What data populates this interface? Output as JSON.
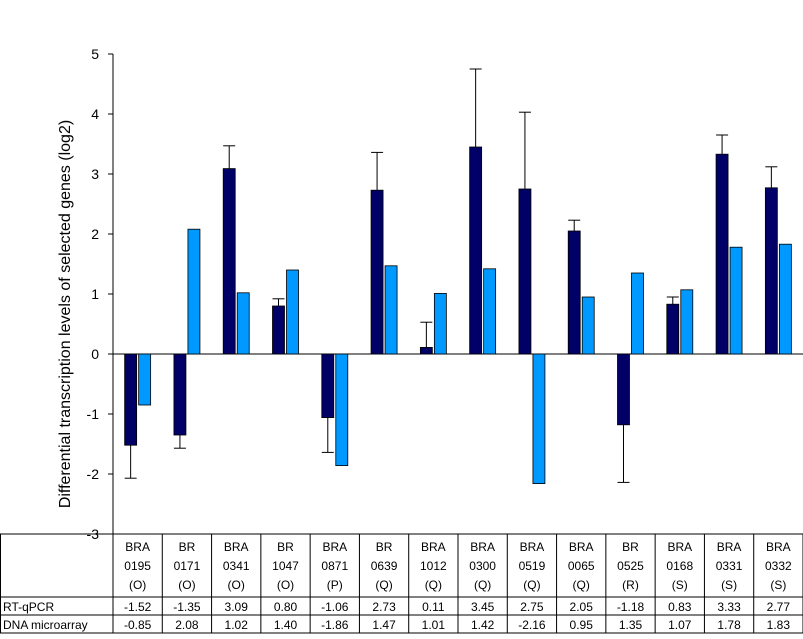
{
  "chart_data": {
    "type": "bar",
    "ylabel": "Differential transcription levels of selected genes (log2)",
    "ylim": [
      -3,
      5
    ],
    "yticks": [
      "-3",
      "-2",
      "-1",
      "0",
      "1",
      "2",
      "3",
      "4",
      "5"
    ],
    "grid": false,
    "categories": [
      [
        "BRA",
        "0195",
        "(O)"
      ],
      [
        "BR",
        "0171",
        "(O)"
      ],
      [
        "BRA",
        "0341",
        "(O)"
      ],
      [
        "BR",
        "1047",
        "(O)"
      ],
      [
        "BRA",
        "0871",
        "(P)"
      ],
      [
        "BR",
        "0639",
        "(Q)"
      ],
      [
        "BRA",
        "1012",
        "(Q)"
      ],
      [
        "BRA",
        "0300",
        "(Q)"
      ],
      [
        "BRA",
        "0519",
        "(Q)"
      ],
      [
        "BRA",
        "0065",
        "(Q)"
      ],
      [
        "BR",
        "0525",
        "(R)"
      ],
      [
        "BRA",
        "0168",
        "(S)"
      ],
      [
        "BRA",
        "0331",
        "(S)"
      ],
      [
        "BRA",
        "0332",
        "(S)"
      ]
    ],
    "series": [
      {
        "name": "RT-qPCR",
        "color": "#000066",
        "values": [
          -1.52,
          -1.35,
          3.09,
          0.8,
          -1.06,
          2.73,
          0.11,
          3.45,
          2.75,
          2.05,
          -1.18,
          0.83,
          3.33,
          2.77
        ],
        "labels": [
          "-1.52",
          "-1.35",
          "3.09",
          "0.80",
          "-1.06",
          "2.73",
          "0.11",
          "3.45",
          "2.75",
          "2.05",
          "-1.18",
          "0.83",
          "3.33",
          "2.77"
        ],
        "error": [
          0.55,
          0.22,
          0.38,
          0.12,
          0.58,
          0.63,
          0.42,
          1.3,
          1.28,
          0.18,
          0.96,
          0.12,
          0.32,
          0.35
        ]
      },
      {
        "name": "DNA microarray",
        "color": "#0099FF",
        "values": [
          -0.85,
          2.08,
          1.02,
          1.4,
          -1.86,
          1.47,
          1.01,
          1.42,
          -2.16,
          0.95,
          1.35,
          1.07,
          1.78,
          1.83
        ],
        "labels": [
          "-0.85",
          "2.08",
          "1.02",
          "1.40",
          "-1.86",
          "1.47",
          "1.01",
          "1.42",
          "-2.16",
          "0.95",
          "1.35",
          "1.07",
          "1.78",
          "1.83"
        ]
      }
    ]
  }
}
